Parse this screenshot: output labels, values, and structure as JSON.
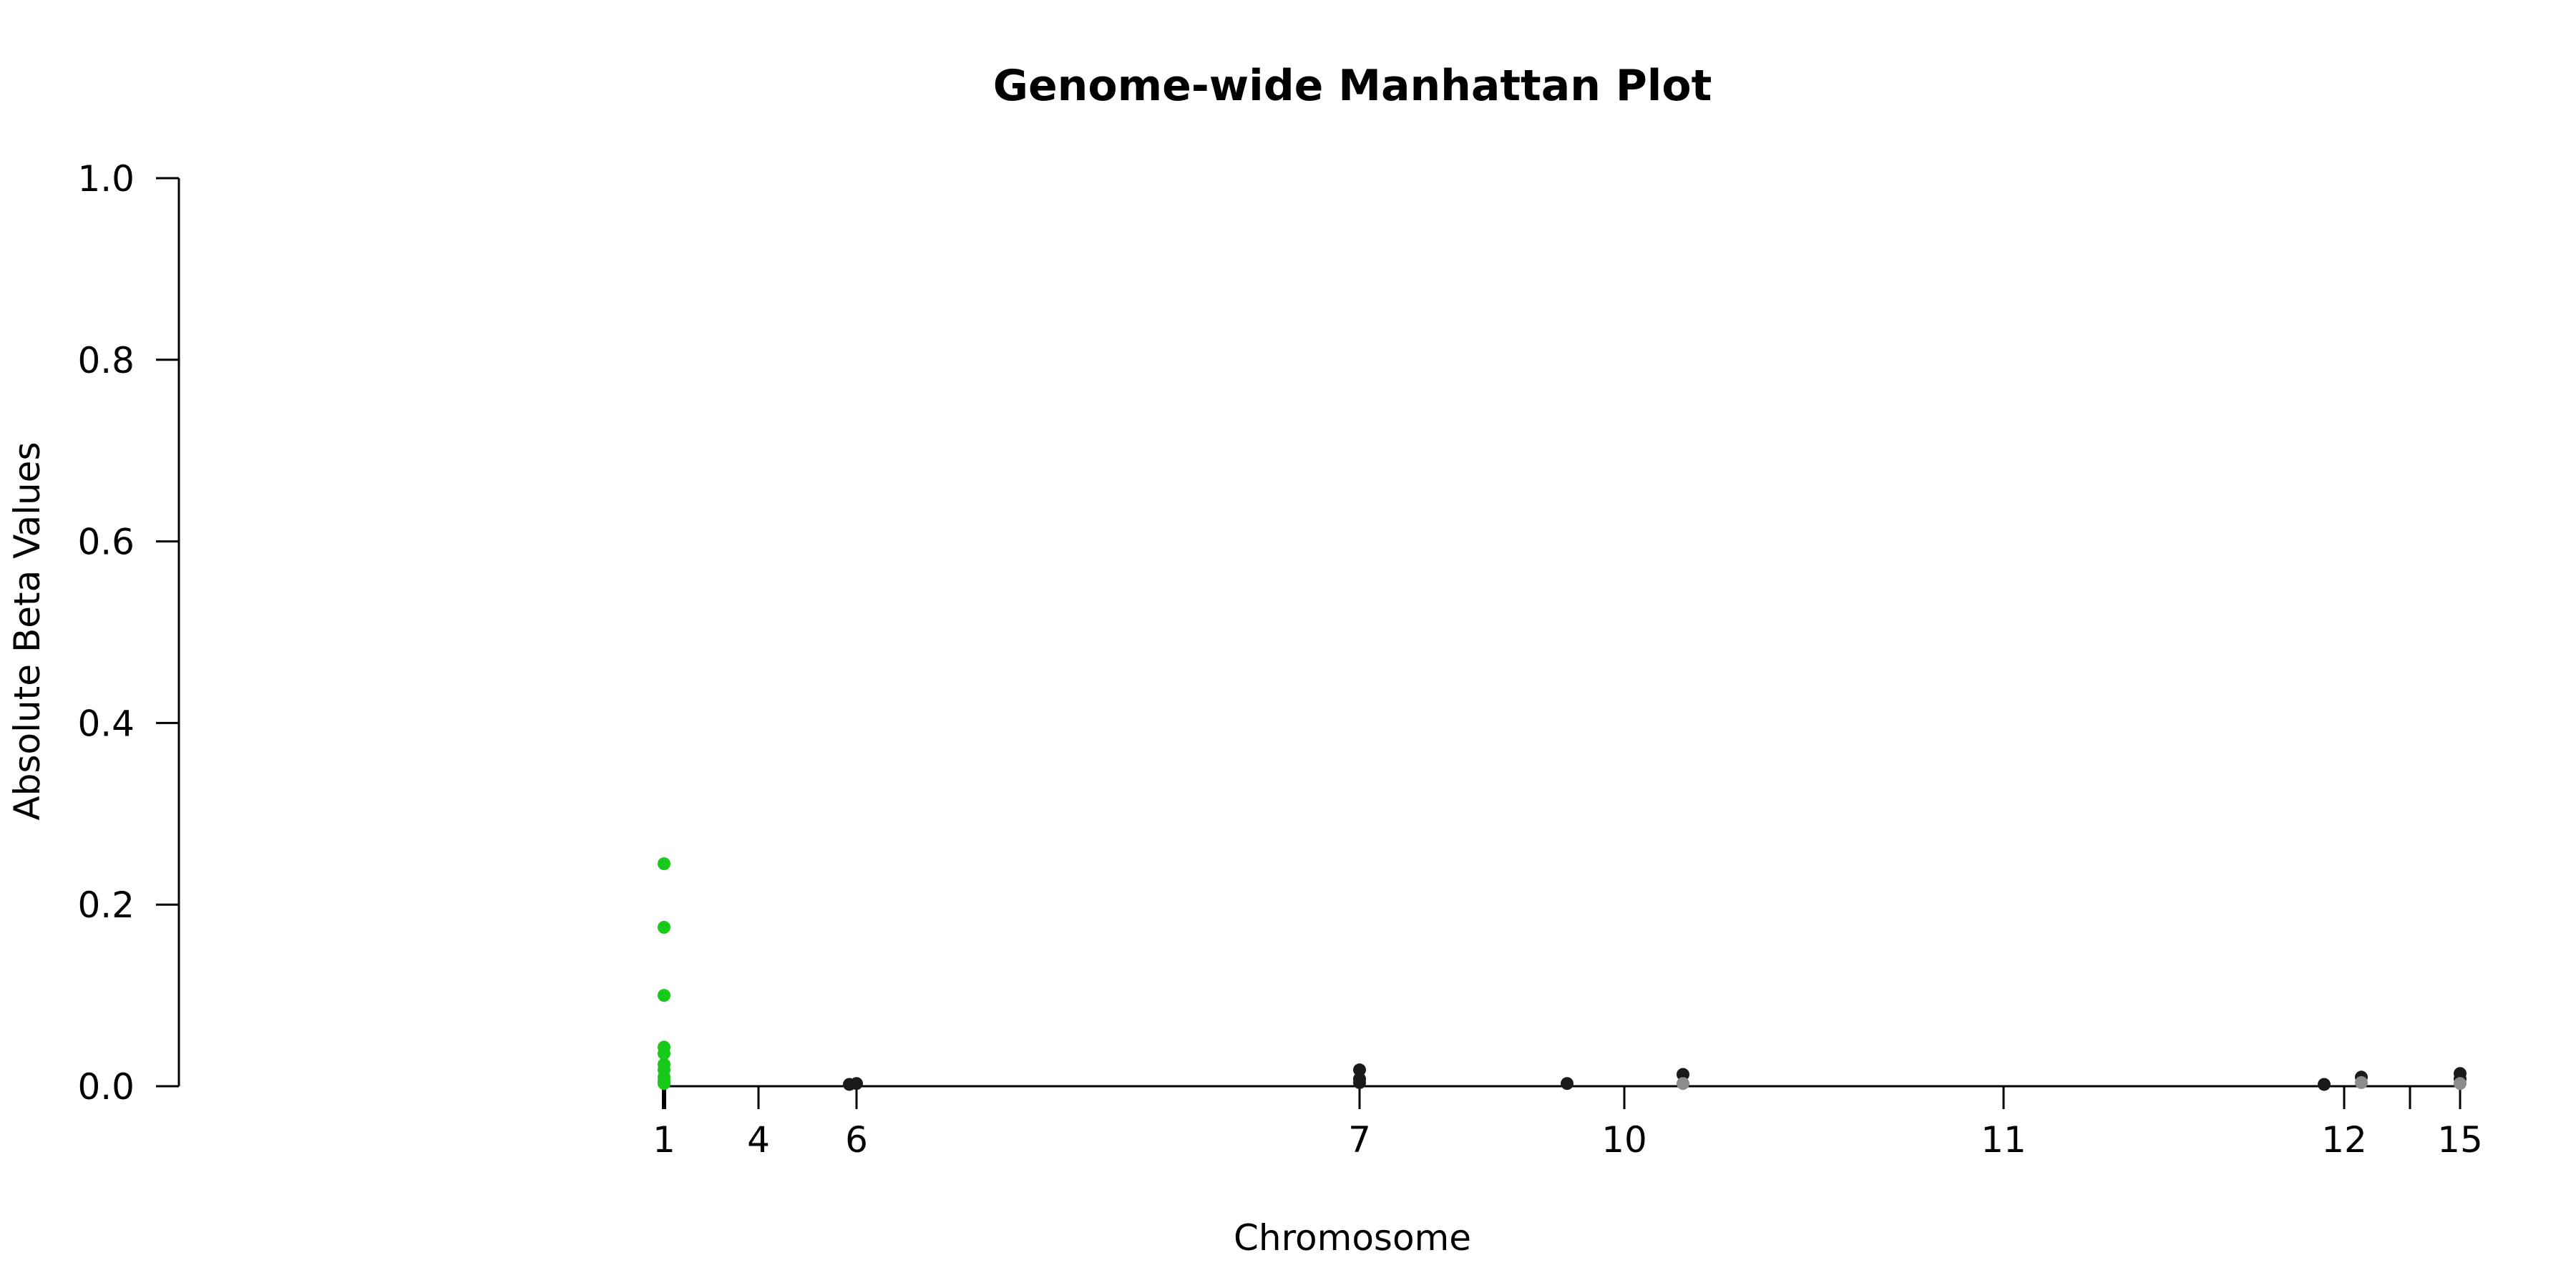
{
  "chart_data": {
    "type": "scatter",
    "title": "Genome-wide Manhattan Plot",
    "xlabel": "Chromosome",
    "ylabel": "Absolute Beta Values",
    "ylim": [
      0,
      1
    ],
    "y_ticks": [
      0.0,
      0.2,
      0.4,
      0.6,
      0.8,
      1.0
    ],
    "x_ticks": [
      {
        "label": "1"
      },
      {
        "label": "4"
      },
      {
        "label": "6"
      },
      {
        "label": "7"
      },
      {
        "label": "10"
      },
      {
        "label": "11"
      },
      {
        "label": "12"
      },
      {
        "label": ""
      },
      {
        "label": "15"
      }
    ],
    "grid": false,
    "legend": "none",
    "colors": {
      "highlight": "#19c919",
      "dark": "#1a1a1a",
      "grey": "#8c8c8c",
      "axis": "#000000"
    },
    "series": [
      {
        "chromosome": "1",
        "color": "highlight",
        "values": [
          0.245,
          0.175,
          0.1,
          0.043,
          0.036,
          0.024,
          0.018,
          0.01,
          0.006,
          0.003
        ]
      },
      {
        "chromosome": "6",
        "color": "dark",
        "values": [
          0.002,
          0.003
        ]
      },
      {
        "chromosome": "7",
        "color": "dark",
        "values": [
          0.018,
          0.008,
          0.004
        ]
      },
      {
        "chromosome": "9",
        "color": "dark",
        "values": [
          0.003
        ]
      },
      {
        "chromosome": "10",
        "color": "dark",
        "values": [
          0.013
        ]
      },
      {
        "chromosome": "10",
        "color": "grey",
        "values": [
          0.003
        ]
      },
      {
        "chromosome": "12",
        "color": "dark",
        "values": [
          0.002
        ]
      },
      {
        "chromosome": "12",
        "color": "dark",
        "values": [
          0.01
        ]
      },
      {
        "chromosome": "12",
        "color": "grey",
        "values": [
          0.004
        ]
      },
      {
        "chromosome": "15",
        "color": "dark",
        "values": [
          0.014,
          0.008
        ]
      },
      {
        "chromosome": "15",
        "color": "grey",
        "values": [
          0.003
        ]
      }
    ]
  }
}
